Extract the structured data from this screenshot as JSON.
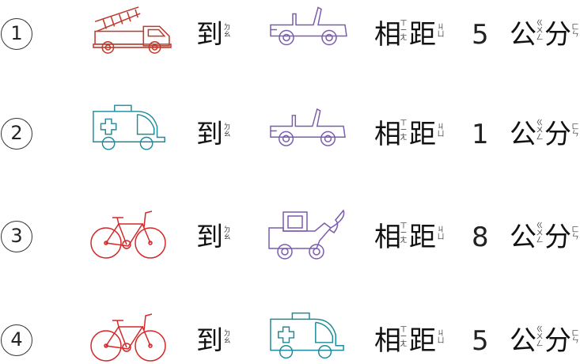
{
  "colors": {
    "fire_truck": "#c0392b",
    "jeep": "#7a5cb0",
    "ambulance": "#1c8a9a",
    "bicycle": "#d62728",
    "loader": "#7a5cb0",
    "text": "#111111"
  },
  "rows": [
    {
      "number": "1",
      "from_vehicle": "fire-truck-icon",
      "to_vehicle": "jeep-icon",
      "distance": "5"
    },
    {
      "number": "2",
      "from_vehicle": "ambulance-icon",
      "to_vehicle": "jeep-icon",
      "distance": "1"
    },
    {
      "number": "3",
      "from_vehicle": "bicycle-icon",
      "to_vehicle": "loader-icon",
      "distance": "8"
    },
    {
      "number": "4",
      "from_vehicle": "bicycle-icon",
      "to_vehicle": "ambulance-icon",
      "distance": "5"
    }
  ],
  "words": {
    "to": "到",
    "to_bpm": [
      "ㄉ",
      "ㄠ"
    ],
    "xiang": "相",
    "xiang_bpm": [
      "ㄒ",
      "ㄧ",
      "ㄤ"
    ],
    "ju": "距",
    "ju_bpm": [
      "ㄐ",
      "ㄩ"
    ],
    "gong": "公",
    "gong_bpm": [
      "ㄍ",
      "ㄨ",
      "ㄥ"
    ],
    "fen": "分",
    "fen_bpm": [
      "ㄈ",
      "ㄣ"
    ]
  }
}
